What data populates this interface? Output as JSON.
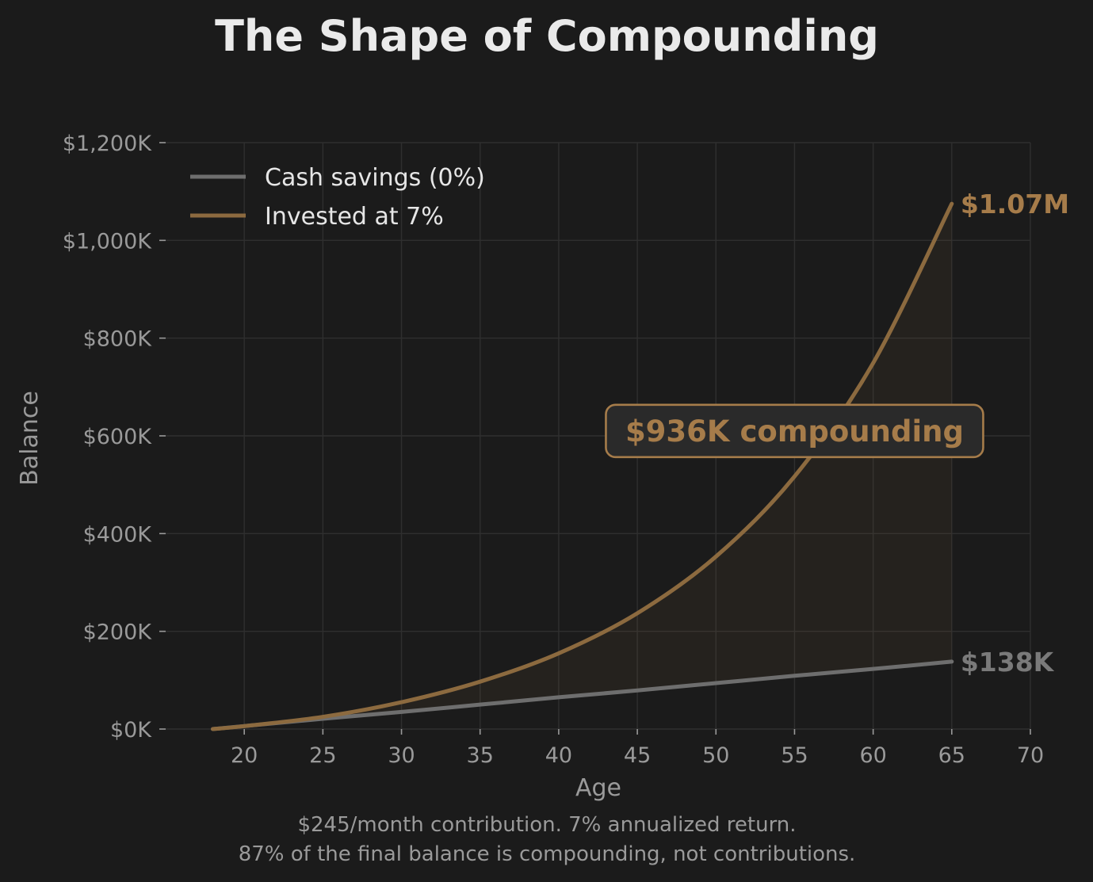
{
  "chart_data": {
    "type": "line",
    "title": "The Shape of Compounding",
    "xlabel": "Age",
    "ylabel": "Balance",
    "xlim": [
      15,
      70
    ],
    "ylim": [
      0,
      1200
    ],
    "y_unit": "thousands of dollars",
    "x_ticks": [
      20,
      25,
      30,
      35,
      40,
      45,
      50,
      55,
      60,
      65,
      70
    ],
    "y_ticks": [
      0,
      200,
      400,
      600,
      800,
      1000,
      1200
    ],
    "y_tick_labels": [
      "$0K",
      "$200K",
      "$400K",
      "$600K",
      "$800K",
      "$1,000K",
      "$1,200K"
    ],
    "grid": true,
    "legend_position": "top-left",
    "x": [
      18,
      20,
      25,
      30,
      35,
      40,
      45,
      50,
      55,
      60,
      65
    ],
    "series": [
      {
        "name": "Cash savings (0%)",
        "color": "#6e6e6e",
        "values": [
          0,
          6,
          21,
          35,
          50,
          65,
          79,
          94,
          109,
          123,
          138
        ]
      },
      {
        "name": "Invested at 7%",
        "color": "#8c6a3f",
        "values": [
          0,
          6,
          25,
          55,
          97,
          155,
          237,
          353,
          517,
          749,
          1075
        ]
      }
    ],
    "fill_between": {
      "lower": "Cash savings (0%)",
      "upper": "Invested at 7%",
      "color": "#8c6a3f"
    },
    "end_labels": [
      {
        "text": "$1.07M",
        "x": 65,
        "y": 1075,
        "color": "#a67c4a"
      },
      {
        "text": "$138K",
        "x": 65,
        "y": 138,
        "color": "#7a7a7a"
      }
    ],
    "annotation": {
      "text": "$936K compounding",
      "x": 55,
      "y": 610,
      "color": "#a67c4a",
      "box_fill": "#2a2a2a",
      "box_stroke": "#a67c4a"
    },
    "caption": [
      "$245/month contribution. 7% annualized return.",
      "87% of the final balance is compounding, not contributions."
    ]
  },
  "colors": {
    "background": "#1b1b1b",
    "grid": "#2f2f2f",
    "tick_text": "#9a9a9a",
    "title_text": "#eaeaea",
    "legend_text": "#e6e6e6"
  }
}
